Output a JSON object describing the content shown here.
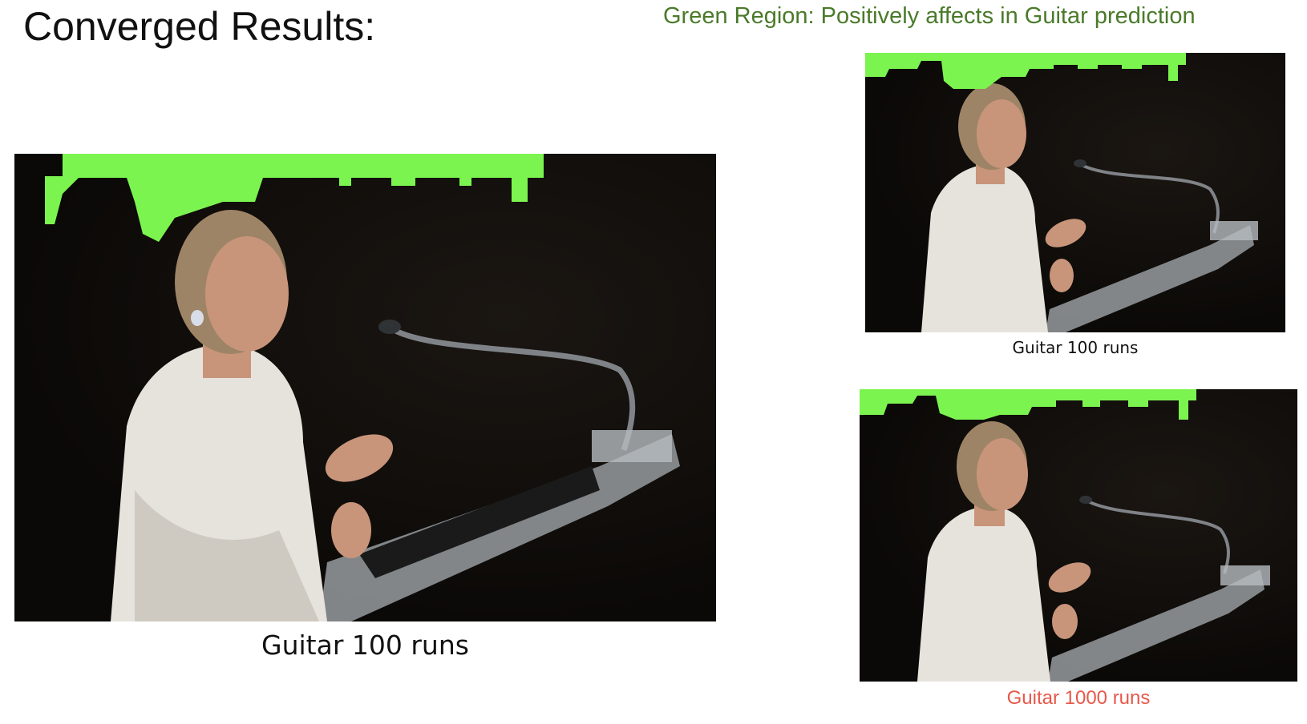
{
  "slide": {
    "title": "Converged Results:",
    "note": "Green Region: Positively affects in Guitar prediction",
    "note_color": "#4a7a2a"
  },
  "panels": [
    {
      "id": "main",
      "caption": "Guitar 100 runs",
      "caption_color": "#111111"
    },
    {
      "id": "top",
      "caption": "Guitar 100 runs",
      "caption_color": "#111111"
    },
    {
      "id": "bottom",
      "caption": "Guitar 1000 runs",
      "caption_color": "#e8584a"
    }
  ],
  "colors": {
    "highlight": "#7cf450",
    "background": "#0c0a08",
    "suit": "#e6e3dc",
    "skin": "#c8957a",
    "hair": "#9e8466",
    "podium": "#9a9ea2"
  }
}
